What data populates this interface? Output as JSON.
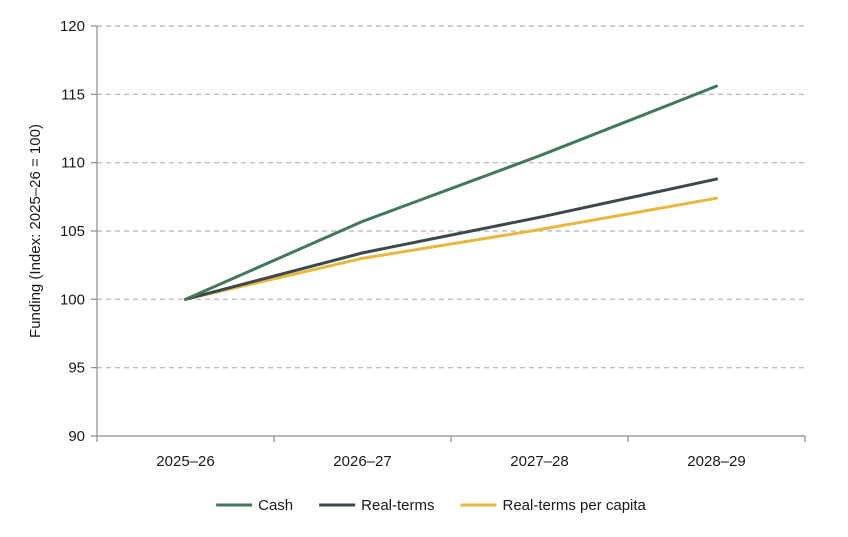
{
  "chart_data": {
    "type": "line",
    "title": "",
    "xlabel": "",
    "ylabel": "Funding (Index: 2025–26 = 100)",
    "categories": [
      "2025–26",
      "2026–27",
      "2027–28",
      "2028–29"
    ],
    "ylim": [
      90,
      120
    ],
    "yticks": [
      90,
      95,
      100,
      105,
      110,
      115,
      120
    ],
    "grid": "horizontal dashed",
    "legend_position": "bottom",
    "series": [
      {
        "name": "Cash",
        "color": "#3f7a5b",
        "values": [
          100,
          105.7,
          110.5,
          115.6
        ]
      },
      {
        "name": "Real-terms",
        "color": "#3a4a4c",
        "values": [
          100,
          103.4,
          106.0,
          108.8
        ]
      },
      {
        "name": "Real-terms per capita",
        "color": "#e8b83c",
        "values": [
          100,
          103.0,
          105.1,
          107.4
        ]
      }
    ]
  }
}
